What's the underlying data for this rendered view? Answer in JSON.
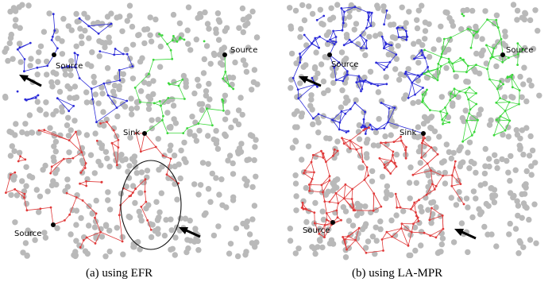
{
  "panels": [
    {
      "caption": "(a) using EFR",
      "labels": {
        "source_top_left": "Source",
        "source_top_right": "Source",
        "sink": "Sink",
        "source_bottom": "Source"
      },
      "colors": {
        "blue": "#2a2ad8",
        "green": "#3bd83b",
        "red": "#e03a3a"
      }
    },
    {
      "caption": "(b) using LA-MPR",
      "labels": {
        "source_top_left": "Source",
        "source_top_right": "Source",
        "sink": "Sink",
        "source_bottom": "Source"
      },
      "colors": {
        "blue": "#2a2ad8",
        "green": "#3bd83b",
        "red": "#e03a3a"
      }
    }
  ],
  "node_color": "#b9b9b9"
}
